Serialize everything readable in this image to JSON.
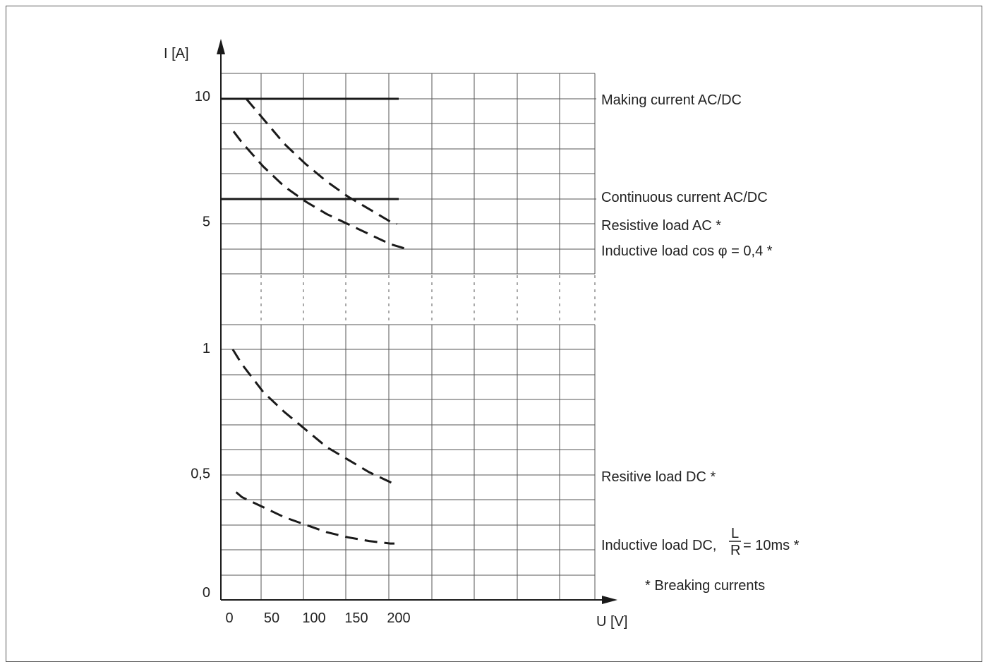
{
  "chart_data": {
    "type": "line",
    "axes": {
      "y_label": "I [A]",
      "x_label": "U [V]",
      "x_ticks": [
        0,
        50,
        100,
        150,
        200
      ],
      "x_tick_labels": [
        "0",
        "50",
        "100",
        "150",
        "200"
      ],
      "y_upper_ticks": [
        {
          "value": 10,
          "label": "10"
        },
        {
          "value": 5,
          "label": "5"
        }
      ],
      "y_lower_ticks": [
        {
          "value": 1,
          "label": "1"
        },
        {
          "value": 0.5,
          "label": "0,5"
        },
        {
          "value": 0,
          "label": "0"
        }
      ],
      "x_range": [
        0,
        220
      ],
      "y_upper_range": [
        3,
        12
      ],
      "y_lower_range": [
        0,
        1.1
      ],
      "axis_break": true,
      "grid": true
    },
    "series": [
      {
        "name": "Making current AC/DC",
        "style": "solid",
        "segment": "upper",
        "x": [
          0,
          210
        ],
        "y": [
          10,
          10
        ]
      },
      {
        "name": "Continuous current AC/DC",
        "style": "solid",
        "segment": "upper",
        "x": [
          0,
          210
        ],
        "y": [
          6,
          6
        ]
      },
      {
        "name": "Resistive load AC *",
        "style": "dashed",
        "segment": "upper",
        "x": [
          30,
          50,
          75,
          100,
          125,
          150,
          175,
          200,
          208
        ],
        "y": [
          10,
          9.2,
          8.2,
          7.4,
          6.7,
          6.1,
          5.6,
          5.1,
          5.0
        ]
      },
      {
        "name": "Inductive load cos φ = 0,4 *",
        "style": "dashed",
        "segment": "upper",
        "x": [
          15,
          25,
          50,
          75,
          100,
          125,
          150,
          175,
          200,
          220
        ],
        "y": [
          8.7,
          8.25,
          7.3,
          6.5,
          5.9,
          5.4,
          5.0,
          4.6,
          4.2,
          4.0
        ]
      },
      {
        "name": "Resitive load DC *",
        "style": "dashed",
        "segment": "lower",
        "x": [
          14,
          25,
          50,
          75,
          100,
          125,
          150,
          175,
          200,
          205
        ],
        "y": [
          1.0,
          0.94,
          0.83,
          0.75,
          0.68,
          0.61,
          0.56,
          0.51,
          0.47,
          0.46
        ]
      },
      {
        "name": "Inductive load DC, L/R = 10ms *",
        "style": "dashed",
        "segment": "lower",
        "x": [
          18,
          25,
          50,
          75,
          100,
          125,
          150,
          175,
          200,
          205
        ],
        "y": [
          0.43,
          0.41,
          0.37,
          0.33,
          0.3,
          0.27,
          0.25,
          0.235,
          0.225,
          0.225
        ]
      }
    ],
    "labels": {
      "making": "Making current AC/DC",
      "continuous": "Continuous current AC/DC",
      "res_ac": "Resistive load AC *",
      "ind_ac": "Inductive load cos φ = 0,4 *",
      "res_dc": "Resitive load DC *",
      "ind_dc_prefix": "Inductive load DC,",
      "ind_dc_num": "L",
      "ind_dc_den": "R",
      "ind_dc_suffix": "= 10ms *",
      "footnote": "* Breaking currents"
    },
    "colors": {
      "line": "#1a1a1a",
      "grid": "#555555",
      "text": "#222222"
    }
  }
}
